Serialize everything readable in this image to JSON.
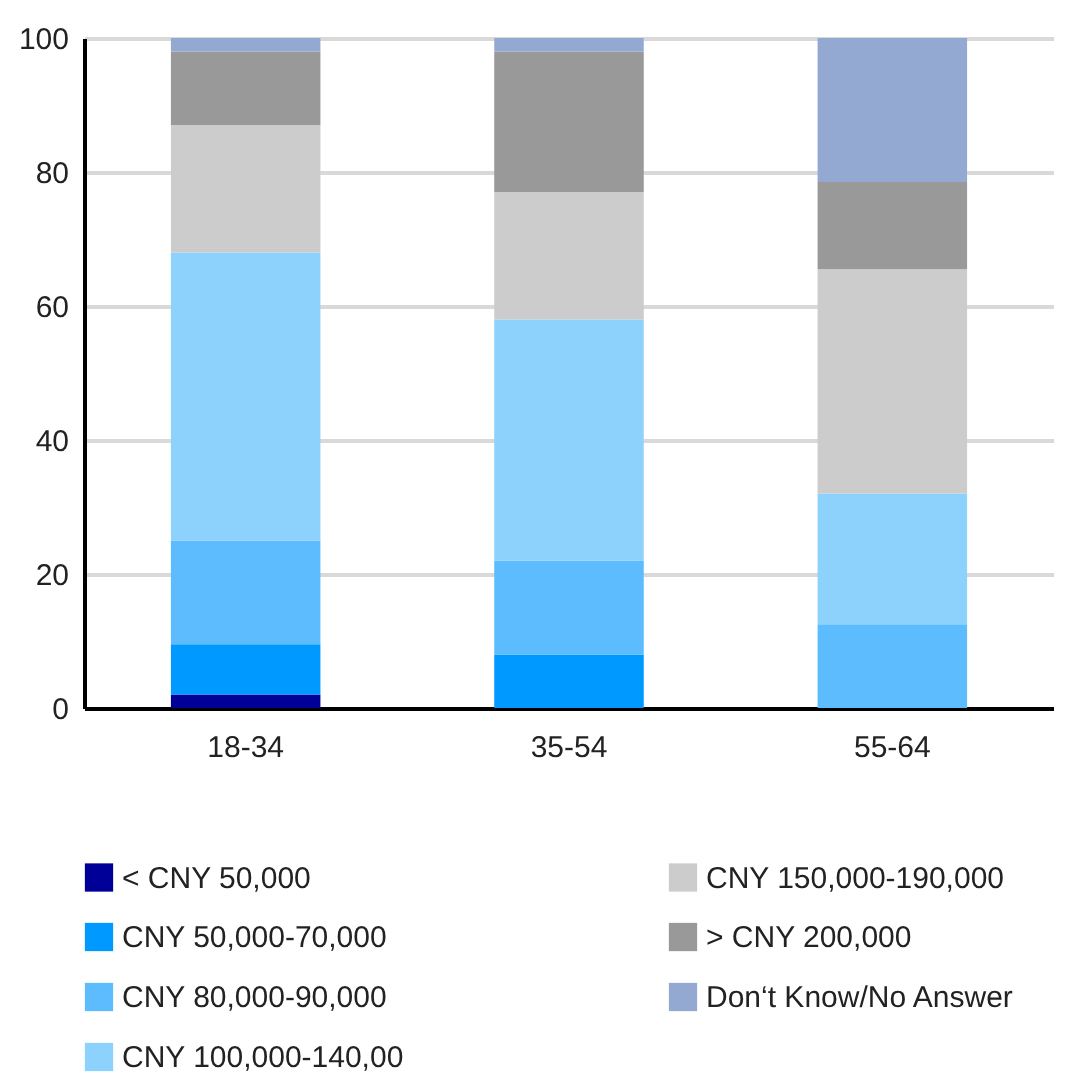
{
  "chart_data": {
    "type": "bar",
    "stacked": true,
    "categories": [
      "18-34",
      "35-54",
      "55-64"
    ],
    "series": [
      {
        "name": "< CNY 50,000",
        "color": "#000099",
        "values": [
          2,
          0,
          0
        ]
      },
      {
        "name": "CNY 50,000-70,000",
        "color": "#0099ff",
        "values": [
          7.5,
          8,
          0
        ]
      },
      {
        "name": "CNY 80,000-90,000",
        "color": "#5cbcfe",
        "values": [
          15.5,
          14,
          12.5
        ]
      },
      {
        "name": "CNY 100,000-140,00",
        "color": "#8dd1fd",
        "values": [
          43,
          36,
          19.5
        ]
      },
      {
        "name": "CNY 150,000-190,000",
        "color": "#cccccc",
        "values": [
          19,
          19,
          33.5
        ]
      },
      {
        "name": "> CNY 200,000",
        "color": "#999999",
        "values": [
          11,
          21,
          13
        ]
      },
      {
        "name": "Don‘t Know/No Answer",
        "color": "#94a9d1",
        "values": [
          2,
          2,
          21.5
        ]
      }
    ],
    "ylim": [
      0,
      100
    ],
    "yticks": [
      0,
      20,
      40,
      60,
      80,
      100
    ],
    "grid": "y",
    "legend": "bottom"
  }
}
